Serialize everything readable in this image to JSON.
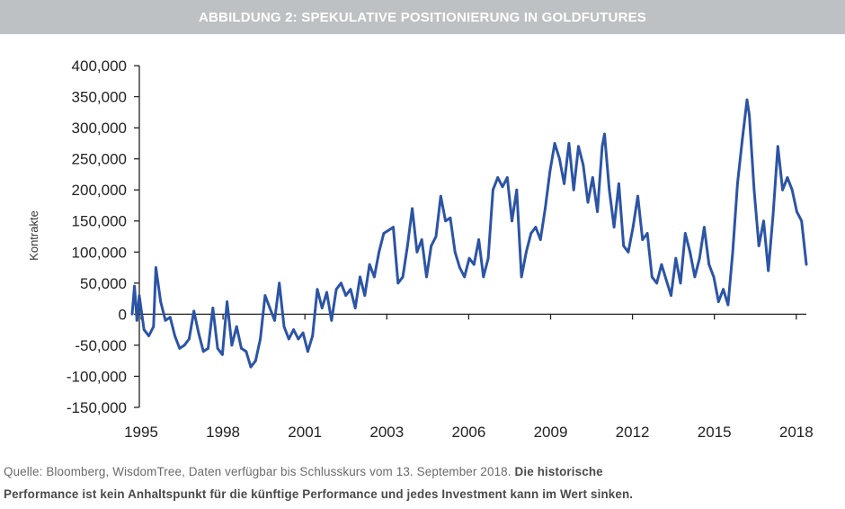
{
  "title": "ABBILDUNG 2: SPEKULATIVE POSITIONIERUNG IN GOLDFUTURES",
  "footer": {
    "source": "Quelle: Bloomberg, WisdomTree, Daten verfügbar bis Schlusskurs vom 13. September 2018.",
    "disclaimer_1": "Die historische",
    "disclaimer_2": "Performance ist kein Anhaltspunkt für die künftige Performance und jedes Investment kann im Wert sinken."
  },
  "chart_data": {
    "type": "line",
    "title": "",
    "xlabel": "",
    "ylabel": "Kontrakte",
    "ylim": [
      -150000,
      400000
    ],
    "xlim": [
      "1995-01",
      "2018-09"
    ],
    "yticks": [
      "400,000",
      "350,000",
      "300,000",
      "250,000",
      "200,000",
      "150,000",
      "100,000",
      "50,000",
      "0",
      "-50,000",
      "-100,000",
      "-150,000"
    ],
    "ytick_values": [
      400000,
      350000,
      300000,
      250000,
      200000,
      150000,
      100000,
      50000,
      0,
      -50000,
      -100000,
      -150000
    ],
    "xticks": [
      "1995",
      "1998",
      "2001",
      "2003",
      "2006",
      "2009",
      "2012",
      "2015",
      "2018"
    ],
    "grid": false,
    "line_color": "#2c54a6",
    "series": [
      {
        "x": [
          "1995-01",
          "1995-02",
          "1995-03",
          "1995-04",
          "1995-06",
          "1995-08",
          "1995-10",
          "1995-11",
          "1996-01",
          "1996-03",
          "1996-05",
          "1996-07",
          "1996-09",
          "1996-11",
          "1997-01",
          "1997-03",
          "1997-05",
          "1997-07",
          "1997-09",
          "1997-11",
          "1998-01",
          "1998-03",
          "1998-05",
          "1998-07",
          "1998-09",
          "1998-11",
          "1999-01",
          "1999-03",
          "1999-05",
          "1999-07",
          "1999-09",
          "1999-11",
          "2000-01",
          "2000-03",
          "2000-05",
          "2000-07",
          "2000-09",
          "2000-11",
          "2001-01",
          "2001-03",
          "2001-05",
          "2001-07",
          "2001-09",
          "2001-11",
          "2002-01",
          "2002-03",
          "2002-05",
          "2002-07",
          "2002-09",
          "2002-11",
          "2003-01",
          "2003-03",
          "2003-05",
          "2003-07",
          "2003-09",
          "2003-11",
          "2004-01",
          "2004-03",
          "2004-05",
          "2004-07",
          "2004-09",
          "2004-11",
          "2005-01",
          "2005-03",
          "2005-05",
          "2005-07",
          "2005-09",
          "2005-11",
          "2006-01",
          "2006-03",
          "2006-05",
          "2006-07",
          "2006-09",
          "2006-11",
          "2007-01",
          "2007-03",
          "2007-05",
          "2007-07",
          "2007-09",
          "2007-11",
          "2008-01",
          "2008-03",
          "2008-05",
          "2008-07",
          "2008-09",
          "2008-11",
          "2009-01",
          "2009-03",
          "2009-05",
          "2009-07",
          "2009-09",
          "2009-11",
          "2010-01",
          "2010-03",
          "2010-05",
          "2010-07",
          "2010-09",
          "2010-11",
          "2011-01",
          "2011-03",
          "2011-05",
          "2011-07",
          "2011-08",
          "2011-10",
          "2011-12",
          "2012-02",
          "2012-04",
          "2012-06",
          "2012-08",
          "2012-10",
          "2012-12",
          "2013-02",
          "2013-04",
          "2013-06",
          "2013-08",
          "2013-10",
          "2013-12",
          "2014-02",
          "2014-04",
          "2014-06",
          "2014-08",
          "2014-10",
          "2014-12",
          "2015-02",
          "2015-04",
          "2015-06",
          "2015-08",
          "2015-10",
          "2015-12",
          "2016-02",
          "2016-04",
          "2016-06",
          "2016-08",
          "2016-09",
          "2016-11",
          "2017-01",
          "2017-03",
          "2017-05",
          "2017-07",
          "2017-09",
          "2017-11",
          "2018-01",
          "2018-03",
          "2018-05",
          "2018-07",
          "2018-09"
        ],
        "y": [
          0,
          45000,
          -10000,
          30000,
          -25000,
          -35000,
          -20000,
          75000,
          20000,
          -10000,
          -5000,
          -35000,
          -55000,
          -50000,
          -40000,
          5000,
          -30000,
          -60000,
          -55000,
          10000,
          -55000,
          -65000,
          20000,
          -50000,
          -20000,
          -55000,
          -60000,
          -85000,
          -75000,
          -40000,
          30000,
          10000,
          -10000,
          50000,
          -20000,
          -40000,
          -25000,
          -40000,
          -30000,
          -60000,
          -35000,
          40000,
          10000,
          35000,
          -10000,
          40000,
          50000,
          30000,
          40000,
          10000,
          60000,
          30000,
          80000,
          60000,
          100000,
          130000,
          135000,
          140000,
          50000,
          60000,
          110000,
          170000,
          100000,
          120000,
          60000,
          110000,
          125000,
          190000,
          150000,
          155000,
          100000,
          75000,
          60000,
          90000,
          80000,
          120000,
          60000,
          90000,
          200000,
          220000,
          205000,
          220000,
          150000,
          200000,
          60000,
          100000,
          130000,
          140000,
          120000,
          170000,
          230000,
          275000,
          250000,
          210000,
          275000,
          200000,
          270000,
          240000,
          180000,
          220000,
          165000,
          270000,
          290000,
          200000,
          140000,
          210000,
          110000,
          100000,
          140000,
          190000,
          120000,
          130000,
          60000,
          50000,
          80000,
          55000,
          30000,
          90000,
          50000,
          130000,
          100000,
          60000,
          90000,
          140000,
          80000,
          60000,
          20000,
          40000,
          15000,
          100000,
          210000,
          280000,
          345000,
          320000,
          200000,
          110000,
          150000,
          70000,
          160000,
          270000,
          200000,
          220000,
          200000,
          165000,
          150000,
          80000
        ]
      }
    ]
  }
}
